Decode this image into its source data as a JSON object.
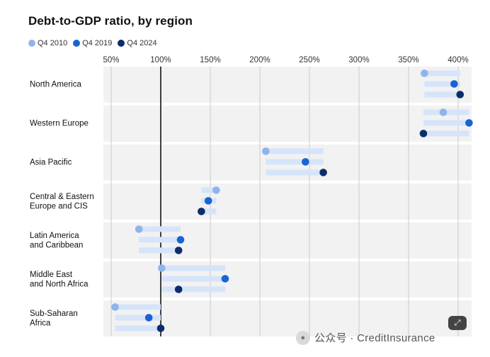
{
  "title": "Debt-to-GDP ratio, by region",
  "legend": [
    {
      "label": "Q4 2010",
      "color": "#8fb4ec"
    },
    {
      "label": "Q4 2019",
      "color": "#1764d6"
    },
    {
      "label": "Q4 2024",
      "color": "#0b2d6b"
    }
  ],
  "watermark": {
    "logo_icon": "wechat-icon",
    "text": "公众号 · CreditInsurance"
  },
  "expand_icon": "expand-icon",
  "chart_data": {
    "type": "scatter",
    "title": "Debt-to-GDP ratio, by region",
    "xlabel": "",
    "ylabel": "",
    "xlim": [
      40,
      415
    ],
    "x_ticks": [
      "50%",
      "100%",
      "150%",
      "200%",
      "250%",
      "300%",
      "350%",
      "400%"
    ],
    "x_tick_values": [
      50,
      100,
      150,
      200,
      250,
      300,
      350,
      400
    ],
    "reference_line": 100,
    "grid": true,
    "categories": [
      "North America",
      "Western Europe",
      "Asia Pacific",
      "Central & Eastern Europe and CIS",
      "Latin America and Caribbean",
      "Middle East and North Africa",
      "Sub-Saharan Africa"
    ],
    "category_lines": [
      [
        "North America"
      ],
      [
        "Western Europe"
      ],
      [
        "Asia Pacific"
      ],
      [
        "Central & Eastern",
        "Europe and CIS"
      ],
      [
        "Latin America",
        "and Caribbean"
      ],
      [
        "Middle East",
        "and North Africa"
      ],
      [
        "Sub-Saharan",
        "Africa"
      ]
    ],
    "series": [
      {
        "name": "Q4 2010",
        "color": "#8fb4ec",
        "values": [
          366,
          385,
          206,
          156,
          78,
          101,
          54
        ]
      },
      {
        "name": "Q4 2019",
        "color": "#1764d6",
        "values": [
          396,
          411,
          246,
          148,
          120,
          165,
          88
        ]
      },
      {
        "name": "Q4 2024",
        "color": "#0b2d6b",
        "values": [
          402,
          365,
          264,
          141,
          118,
          118,
          100
        ]
      }
    ]
  }
}
